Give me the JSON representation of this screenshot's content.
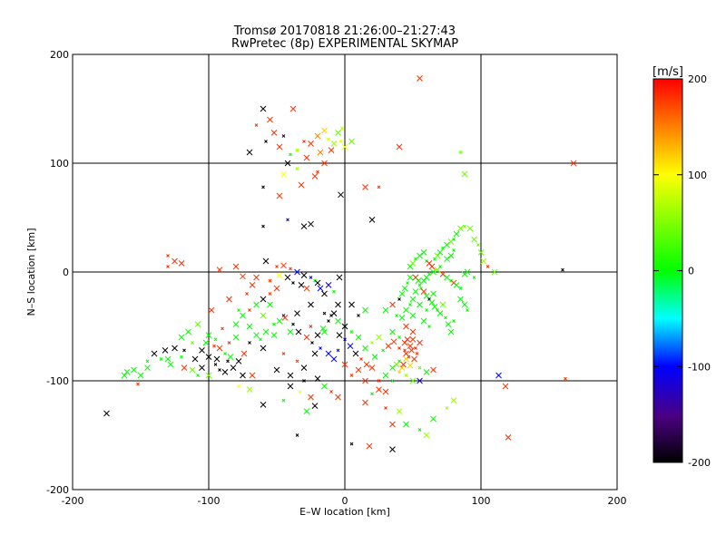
{
  "chart_data": {
    "type": "scatter",
    "title": "Tromsø 20170818 21:26:00–21:27:43",
    "subtitle": "RwPretec (8p) EXPERIMENTAL SKYMAP",
    "xlabel": "E–W location [km]",
    "ylabel": "N–S location [km]",
    "xlim": [
      -200,
      200
    ],
    "ylim": [
      -200,
      200
    ],
    "xticks": [
      -200,
      -100,
      0,
      100,
      200
    ],
    "yticks": [
      -200,
      -100,
      0,
      100,
      200
    ],
    "grid": true,
    "marker": "cross",
    "colorbar": {
      "label": "[m/s]",
      "range": [
        -200,
        200
      ],
      "ticks": [
        200,
        100,
        0,
        -100,
        -200
      ],
      "colormap": "black-purple-blue-cyan-green-yellow-red"
    },
    "points": [
      [
        -45,
        125,
        -180
      ],
      [
        -38,
        150,
        180
      ],
      [
        -55,
        140,
        180
      ],
      [
        -30,
        120,
        180
      ],
      [
        -20,
        125,
        150
      ],
      [
        -15,
        130,
        120
      ],
      [
        -12,
        122,
        80
      ],
      [
        -8,
        118,
        60
      ],
      [
        -5,
        128,
        40
      ],
      [
        -3,
        120,
        90
      ],
      [
        -18,
        110,
        150
      ],
      [
        -25,
        118,
        180
      ],
      [
        -40,
        108,
        0
      ],
      [
        -48,
        115,
        180
      ],
      [
        -52,
        128,
        180
      ],
      [
        -35,
        112,
        60
      ],
      [
        -60,
        150,
        -200
      ],
      [
        -70,
        110,
        -200
      ],
      [
        -65,
        135,
        180
      ],
      [
        -28,
        105,
        180
      ],
      [
        -10,
        112,
        180
      ],
      [
        -2,
        132,
        70
      ],
      [
        5,
        120,
        40
      ],
      [
        0,
        115,
        90
      ],
      [
        -58,
        120,
        -200
      ],
      [
        -42,
        100,
        -200
      ],
      [
        -15,
        100,
        180
      ],
      [
        -35,
        95,
        60
      ],
      [
        -45,
        90,
        100
      ],
      [
        -22,
        88,
        180
      ],
      [
        -60,
        78,
        -200
      ],
      [
        -32,
        80,
        180
      ],
      [
        -48,
        70,
        180
      ],
      [
        -20,
        92,
        180
      ],
      [
        15,
        78,
        180
      ],
      [
        -3,
        71,
        -200
      ],
      [
        25,
        78,
        180
      ],
      [
        40,
        115,
        180
      ],
      [
        55,
        178,
        180
      ],
      [
        85,
        110,
        40
      ],
      [
        88,
        90,
        40
      ],
      [
        168,
        100,
        180
      ],
      [
        -42,
        48,
        -120
      ],
      [
        -25,
        44,
        -200
      ],
      [
        -30,
        42,
        -200
      ],
      [
        -60,
        42,
        -200
      ],
      [
        20,
        48,
        -200
      ],
      [
        -58,
        10,
        -200
      ],
      [
        -50,
        5,
        180
      ],
      [
        -80,
        5,
        180
      ],
      [
        -92,
        2,
        180
      ],
      [
        -130,
        15,
        180
      ],
      [
        -125,
        10,
        180
      ],
      [
        -120,
        8,
        180
      ],
      [
        -130,
        5,
        180
      ],
      [
        -75,
        -4,
        180
      ],
      [
        -65,
        -5,
        180
      ],
      [
        -55,
        -8,
        180
      ],
      [
        -48,
        -3,
        100
      ],
      [
        -42,
        -5,
        -200
      ],
      [
        -38,
        -10,
        -200
      ],
      [
        -32,
        -12,
        -200
      ],
      [
        -28,
        -15,
        180
      ],
      [
        -22,
        -8,
        0
      ],
      [
        -18,
        -15,
        -100
      ],
      [
        -12,
        -12,
        -100
      ],
      [
        -8,
        -18,
        0
      ],
      [
        -4,
        -5,
        -200
      ],
      [
        -68,
        -12,
        180
      ],
      [
        -72,
        -20,
        180
      ],
      [
        -85,
        -25,
        180
      ],
      [
        -98,
        -35,
        180
      ],
      [
        -78,
        -35,
        0
      ],
      [
        -60,
        -40,
        40
      ],
      [
        -55,
        -30,
        0
      ],
      [
        -45,
        -40,
        -100
      ],
      [
        -35,
        -38,
        -200
      ],
      [
        -25,
        -30,
        -200
      ],
      [
        -15,
        -38,
        -200
      ],
      [
        -5,
        -30,
        -200
      ],
      [
        5,
        -30,
        -200
      ],
      [
        10,
        -40,
        -200
      ],
      [
        15,
        -35,
        0
      ],
      [
        -15,
        -55,
        0
      ],
      [
        -25,
        -50,
        180
      ],
      [
        -40,
        -55,
        0
      ],
      [
        -52,
        -58,
        0
      ],
      [
        -62,
        -62,
        0
      ],
      [
        -70,
        -50,
        0
      ],
      [
        -80,
        -48,
        0
      ],
      [
        -90,
        -52,
        180
      ],
      [
        -100,
        -58,
        0
      ],
      [
        -108,
        -48,
        40
      ],
      [
        -112,
        -65,
        40
      ],
      [
        -105,
        -72,
        -200
      ],
      [
        -100,
        -78,
        -200
      ],
      [
        -95,
        -85,
        -200
      ],
      [
        -105,
        -88,
        -200
      ],
      [
        -110,
        -80,
        -200
      ],
      [
        -118,
        -72,
        -200
      ],
      [
        -125,
        -70,
        -200
      ],
      [
        -132,
        -72,
        -200
      ],
      [
        -120,
        -78,
        0
      ],
      [
        -130,
        -80,
        0
      ],
      [
        -128,
        -85,
        0
      ],
      [
        -135,
        -80,
        0
      ],
      [
        -145,
        -88,
        0
      ],
      [
        -162,
        -95,
        0
      ],
      [
        -152,
        -103,
        180
      ],
      [
        -175,
        -130,
        -200
      ],
      [
        -60,
        -70,
        -200
      ],
      [
        -45,
        -75,
        180
      ],
      [
        -50,
        -90,
        -200
      ],
      [
        -40,
        -95,
        -200
      ],
      [
        -35,
        -82,
        180
      ],
      [
        -30,
        -88,
        -200
      ],
      [
        -22,
        -75,
        -200
      ],
      [
        -18,
        -70,
        -100
      ],
      [
        -12,
        -75,
        -100
      ],
      [
        -8,
        -80,
        -100
      ],
      [
        -5,
        -72,
        -100
      ],
      [
        0,
        -85,
        180
      ],
      [
        10,
        -90,
        180
      ],
      [
        5,
        -95,
        180
      ],
      [
        15,
        -100,
        180
      ],
      [
        20,
        -88,
        180
      ],
      [
        25,
        -100,
        180
      ],
      [
        30,
        -95,
        0
      ],
      [
        35,
        -88,
        0
      ],
      [
        40,
        -82,
        0
      ],
      [
        45,
        -75,
        180
      ],
      [
        50,
        -62,
        180
      ],
      [
        52,
        -70,
        180
      ],
      [
        48,
        -68,
        180
      ],
      [
        55,
        -65,
        180
      ],
      [
        44,
        -72,
        180
      ],
      [
        45,
        -80,
        120
      ],
      [
        42,
        -88,
        120
      ],
      [
        40,
        -92,
        120
      ],
      [
        38,
        -85,
        40
      ],
      [
        48,
        -86,
        120
      ],
      [
        55,
        -88,
        40
      ],
      [
        60,
        -92,
        0
      ],
      [
        65,
        -90,
        180
      ],
      [
        45,
        -95,
        60
      ],
      [
        50,
        -100,
        40
      ],
      [
        55,
        -100,
        -100
      ],
      [
        35,
        -100,
        0
      ],
      [
        30,
        -110,
        180
      ],
      [
        25,
        -108,
        180
      ],
      [
        20,
        -112,
        0
      ],
      [
        15,
        -120,
        180
      ],
      [
        40,
        -128,
        60
      ],
      [
        30,
        -125,
        180
      ],
      [
        35,
        -140,
        180
      ],
      [
        45,
        -140,
        0
      ],
      [
        55,
        -145,
        0
      ],
      [
        60,
        -150,
        60
      ],
      [
        65,
        -135,
        0
      ],
      [
        75,
        -125,
        60
      ],
      [
        80,
        -118,
        60
      ],
      [
        18,
        -160,
        180
      ],
      [
        5,
        -158,
        -200
      ],
      [
        35,
        -163,
        -200
      ],
      [
        120,
        -152,
        180
      ],
      [
        -35,
        -150,
        -200
      ],
      [
        -28,
        -128,
        0
      ],
      [
        -22,
        -123,
        -200
      ],
      [
        -45,
        -118,
        0
      ],
      [
        -60,
        -122,
        -200
      ],
      [
        -40,
        -105,
        -200
      ],
      [
        -30,
        -100,
        -200
      ],
      [
        -20,
        -98,
        -200
      ],
      [
        -15,
        -105,
        0
      ],
      [
        -10,
        -110,
        180
      ],
      [
        -5,
        -115,
        180
      ],
      [
        -25,
        -115,
        180
      ],
      [
        -33,
        -110,
        100
      ],
      [
        -82,
        -88,
        -200
      ],
      [
        -88,
        -92,
        -200
      ],
      [
        -92,
        -90,
        -200
      ],
      [
        -75,
        -95,
        -200
      ],
      [
        -70,
        -108,
        60
      ],
      [
        -78,
        -105,
        100
      ],
      [
        -68,
        -95,
        180
      ],
      [
        -100,
        -95,
        40
      ],
      [
        -108,
        -95,
        0
      ],
      [
        -112,
        -90,
        40
      ],
      [
        -118,
        -88,
        180
      ],
      [
        -95,
        -62,
        0
      ],
      [
        30,
        -35,
        0
      ],
      [
        35,
        -30,
        180
      ],
      [
        38,
        -40,
        0
      ],
      [
        42,
        -42,
        0
      ],
      [
        45,
        -35,
        0
      ],
      [
        48,
        -30,
        0
      ],
      [
        50,
        -25,
        0
      ],
      [
        52,
        -18,
        0
      ],
      [
        55,
        -12,
        0
      ],
      [
        58,
        -8,
        0
      ],
      [
        60,
        -5,
        0
      ],
      [
        62,
        -2,
        0
      ],
      [
        65,
        0,
        0
      ],
      [
        68,
        2,
        40
      ],
      [
        70,
        5,
        0
      ],
      [
        72,
        -2,
        180
      ],
      [
        75,
        -5,
        0
      ],
      [
        78,
        -8,
        0
      ],
      [
        80,
        -10,
        180
      ],
      [
        82,
        -12,
        0
      ],
      [
        85,
        -15,
        0
      ],
      [
        88,
        -2,
        0
      ],
      [
        90,
        0,
        0
      ],
      [
        95,
        -5,
        0
      ],
      [
        48,
        5,
        0
      ],
      [
        50,
        8,
        40
      ],
      [
        52,
        12,
        0
      ],
      [
        55,
        15,
        0
      ],
      [
        58,
        18,
        0
      ],
      [
        60,
        10,
        0
      ],
      [
        62,
        8,
        180
      ],
      [
        64,
        5,
        180
      ],
      [
        66,
        12,
        0
      ],
      [
        68,
        15,
        40
      ],
      [
        70,
        18,
        0
      ],
      [
        72,
        22,
        0
      ],
      [
        75,
        25,
        0
      ],
      [
        78,
        28,
        40
      ],
      [
        80,
        30,
        0
      ],
      [
        82,
        35,
        0
      ],
      [
        85,
        40,
        40
      ],
      [
        88,
        42,
        40
      ],
      [
        92,
        40,
        40
      ],
      [
        95,
        30,
        40
      ],
      [
        98,
        25,
        40
      ],
      [
        100,
        18,
        40
      ],
      [
        102,
        10,
        60
      ],
      [
        105,
        5,
        180
      ],
      [
        110,
        0,
        40
      ],
      [
        48,
        -5,
        0
      ],
      [
        46,
        -10,
        0
      ],
      [
        44,
        -15,
        0
      ],
      [
        42,
        -20,
        0
      ],
      [
        40,
        -25,
        -200
      ],
      [
        52,
        -5,
        180
      ],
      [
        54,
        -8,
        0
      ],
      [
        56,
        -15,
        0
      ],
      [
        58,
        -18,
        180
      ],
      [
        60,
        -22,
        0
      ],
      [
        62,
        -25,
        -200
      ],
      [
        64,
        -28,
        0
      ],
      [
        66,
        -32,
        0
      ],
      [
        68,
        -35,
        0
      ],
      [
        70,
        -38,
        0
      ],
      [
        72,
        -30,
        40
      ],
      [
        74,
        -42,
        0
      ],
      [
        76,
        -48,
        0
      ],
      [
        78,
        -55,
        0
      ],
      [
        80,
        -45,
        0
      ],
      [
        85,
        -25,
        0
      ],
      [
        88,
        -30,
        0
      ],
      [
        90,
        -35,
        0
      ],
      [
        75,
        12,
        0
      ],
      [
        78,
        15,
        0
      ],
      [
        80,
        20,
        0
      ],
      [
        65,
        -20,
        0
      ],
      [
        55,
        -30,
        0
      ],
      [
        60,
        -35,
        0
      ],
      [
        50,
        -40,
        0
      ],
      [
        58,
        -45,
        0
      ],
      [
        62,
        -50,
        0
      ],
      [
        45,
        -50,
        180
      ],
      [
        50,
        -55,
        180
      ],
      [
        40,
        -60,
        0
      ],
      [
        35,
        -55,
        0
      ],
      [
        25,
        -60,
        60
      ],
      [
        20,
        -65,
        60
      ],
      [
        15,
        -70,
        0
      ],
      [
        10,
        -60,
        0
      ],
      [
        5,
        -55,
        0
      ],
      [
        0,
        -50,
        -200
      ],
      [
        -5,
        -45,
        0
      ],
      [
        -10,
        -40,
        -200
      ],
      [
        -15,
        -20,
        -200
      ],
      [
        -20,
        -10,
        -200
      ],
      [
        -25,
        -5,
        -100
      ],
      [
        -30,
        -3,
        -200
      ],
      [
        -35,
        0,
        -100
      ],
      [
        -40,
        3,
        180
      ],
      [
        -45,
        6,
        180
      ],
      [
        -50,
        -15,
        180
      ],
      [
        -55,
        -20,
        180
      ],
      [
        -60,
        -25,
        -200
      ],
      [
        -65,
        -30,
        0
      ],
      [
        -70,
        -35,
        180
      ],
      [
        -75,
        -40,
        0
      ],
      [
        -80,
        -60,
        0
      ],
      [
        -85,
        -65,
        180
      ],
      [
        -115,
        -55,
        0
      ],
      [
        -120,
        -60,
        0
      ],
      [
        160,
        2,
        -200
      ],
      [
        113,
        -95,
        -100
      ],
      [
        118,
        -105,
        180
      ],
      [
        162,
        -98,
        180
      ],
      [
        -160,
        -92,
        0
      ],
      [
        -140,
        -75,
        -200
      ],
      [
        -145,
        -82,
        0
      ],
      [
        -150,
        -95,
        0
      ],
      [
        -155,
        -90,
        0
      ],
      [
        -88,
        -75,
        0
      ],
      [
        -92,
        -70,
        180
      ],
      [
        -94,
        -80,
        -200
      ],
      [
        -96,
        -68,
        180
      ],
      [
        -102,
        -65,
        0
      ],
      [
        -84,
        -78,
        0
      ],
      [
        -86,
        -82,
        -200
      ],
      [
        -78,
        -82,
        -200
      ],
      [
        -74,
        -75,
        180
      ],
      [
        -70,
        -65,
        -200
      ],
      [
        -65,
        -58,
        0
      ],
      [
        -58,
        -55,
        0
      ],
      [
        -52,
        -48,
        0
      ],
      [
        -48,
        -45,
        0
      ],
      [
        -44,
        -42,
        180
      ],
      [
        -38,
        -48,
        -200
      ],
      [
        -34,
        -55,
        -200
      ],
      [
        -28,
        -60,
        180
      ],
      [
        -24,
        -65,
        -200
      ],
      [
        -20,
        -58,
        -200
      ],
      [
        -16,
        -52,
        0
      ],
      [
        -12,
        -45,
        -200
      ],
      [
        -8,
        -38,
        -200
      ],
      [
        -4,
        -58,
        -200
      ],
      [
        0,
        -62,
        -100
      ],
      [
        4,
        -68,
        -100
      ],
      [
        8,
        -75,
        -200
      ],
      [
        12,
        -80,
        180
      ],
      [
        16,
        -85,
        180
      ],
      [
        22,
        -78,
        0
      ],
      [
        28,
        -72,
        0
      ],
      [
        32,
        -68,
        180
      ],
      [
        36,
        -64,
        180
      ],
      [
        40,
        -70,
        180
      ],
      [
        44,
        -65,
        180
      ],
      [
        46,
        -62,
        180
      ],
      [
        47,
        -78,
        180
      ],
      [
        49,
        -72,
        180
      ],
      [
        51,
        -80,
        180
      ],
      [
        53,
        -75,
        180
      ],
      [
        43,
        -85,
        180
      ]
    ]
  }
}
